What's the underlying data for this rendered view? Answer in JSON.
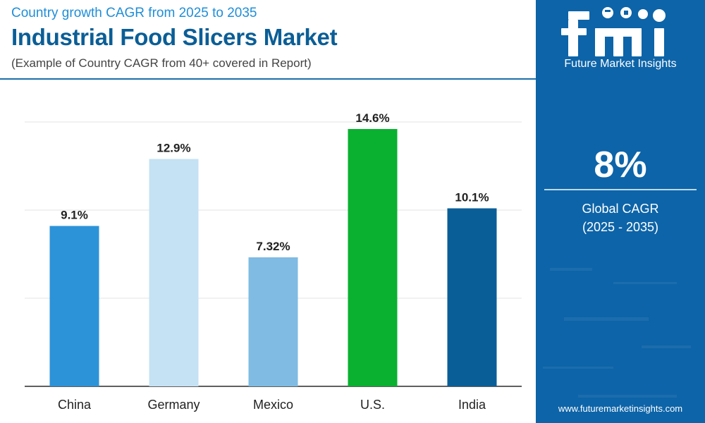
{
  "header": {
    "subtitle": "Country growth CAGR from 2025 to 2035",
    "title": "Industrial Food Slicers Market",
    "note": "(Example of Country CAGR from 40+ covered in Report)"
  },
  "sidebar": {
    "logo_text": "fmi",
    "logo_caption": "Future Market Insights",
    "global_value": "8%",
    "global_label": "Global CAGR",
    "global_period": "(2025 - 2035)",
    "website": "www.futuremarketinsights.com",
    "background_color": "#0d64a8"
  },
  "chart_data": {
    "type": "bar",
    "title": "Industrial Food Slicers Market",
    "categories": [
      "China",
      "Germany",
      "Mexico",
      "U.S.",
      "India"
    ],
    "values": [
      9.1,
      12.9,
      7.32,
      14.6,
      10.1
    ],
    "value_labels": [
      "9.1%",
      "12.9%",
      "7.32%",
      "14.6%",
      "10.1%"
    ],
    "colors": [
      "#2d93d8",
      "#c5e2f4",
      "#7fbbe3",
      "#0ab131",
      "#0a5e97"
    ],
    "unit": "%",
    "ylim": [
      0,
      15
    ],
    "grid": true,
    "legend": "none"
  }
}
